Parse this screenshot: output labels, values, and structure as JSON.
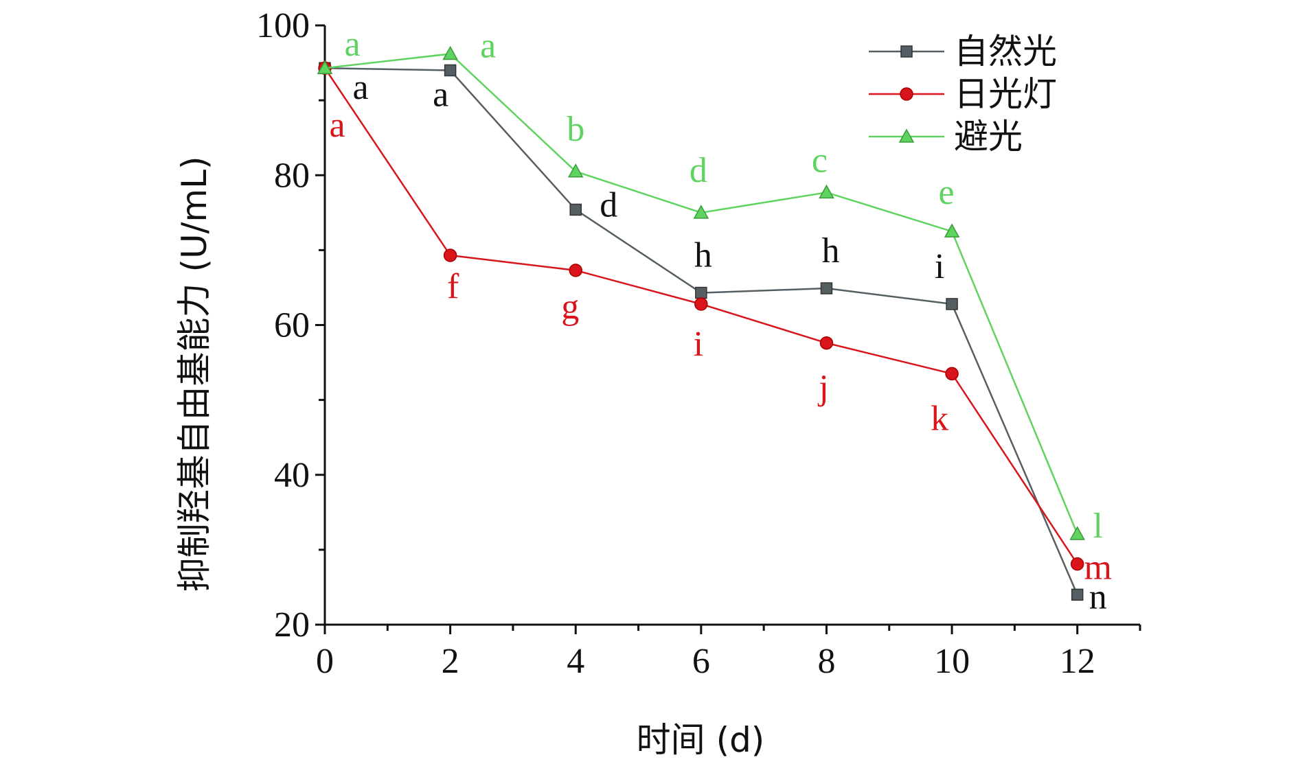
{
  "chart_data": {
    "type": "line",
    "title": "",
    "xlabel": "时间 (d)",
    "ylabel": "抑制羟基自由基能力 (U/mL)",
    "xlim": [
      0,
      13
    ],
    "ylim": [
      20,
      100
    ],
    "x_ticks": [
      "0",
      "2",
      "4",
      "6",
      "8",
      "10",
      "12"
    ],
    "y_ticks": [
      "20",
      "40",
      "60",
      "80",
      "100"
    ],
    "x": [
      0,
      2,
      4,
      6,
      8,
      10,
      12
    ],
    "legend_position": "top-right",
    "grid": false,
    "series": [
      {
        "name": "自然光",
        "color": "#555f63",
        "marker": "square",
        "values": [
          94.3,
          94.0,
          75.4,
          64.3,
          64.9,
          62.8,
          24.0
        ],
        "labels": [
          "a",
          "a",
          "d",
          "h",
          "h",
          "i",
          "n"
        ]
      },
      {
        "name": "日光灯",
        "color": "#d9141b",
        "marker": "circle",
        "values": [
          94.3,
          69.3,
          67.3,
          62.8,
          57.6,
          53.5,
          28.1
        ],
        "labels": [
          "a",
          "f",
          "g",
          "i",
          "j",
          "k",
          "m"
        ]
      },
      {
        "name": "避光",
        "color": "#5fd35f",
        "marker": "triangle",
        "values": [
          94.3,
          96.2,
          80.5,
          75.0,
          77.7,
          72.5,
          32.1
        ],
        "labels": [
          "a",
          "a",
          "b",
          "d",
          "c",
          "e",
          "l"
        ]
      }
    ]
  }
}
